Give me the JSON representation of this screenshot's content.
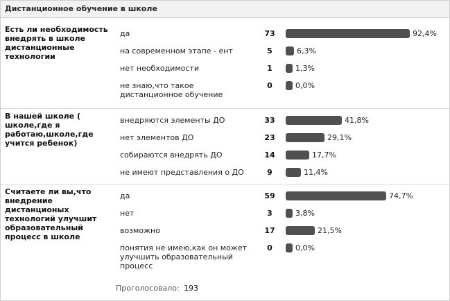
{
  "poll": {
    "title": "Дистанционное обучение в школе",
    "total_label": "Проголосовало:",
    "total_votes": "193",
    "bar_color": "#505050",
    "questions": [
      {
        "text": "Есть ли необходимость внедрять в школе дистанционные технологии",
        "options": [
          {
            "label": "да",
            "count": "73",
            "percent": "92,4%",
            "fraction": 0.924
          },
          {
            "label": "на современном этапе - ент",
            "count": "5",
            "percent": "6,3%",
            "fraction": 0.063
          },
          {
            "label": "нет необходимости",
            "count": "1",
            "percent": "1,3%",
            "fraction": 0.013
          },
          {
            "label": "не знаю,что такое дистанционное обучение",
            "count": "0",
            "percent": "0,0%",
            "fraction": 0.0
          }
        ]
      },
      {
        "text": "В нашей школе ( школе,где я работаю,школе,где учится ребенок)",
        "options": [
          {
            "label": "внедряются элементы ДО",
            "count": "33",
            "percent": "41,8%",
            "fraction": 0.418
          },
          {
            "label": "нет элементов ДО",
            "count": "23",
            "percent": "29,1%",
            "fraction": 0.291
          },
          {
            "label": "собираются внедрять ДО",
            "count": "14",
            "percent": "17,7%",
            "fraction": 0.177
          },
          {
            "label": "не имеют представления о ДО",
            "count": "9",
            "percent": "11,4%",
            "fraction": 0.114
          }
        ]
      },
      {
        "text": "Считаете ли вы,что внедрение дистанционых технологий улучшит образовательный процесс в школе",
        "options": [
          {
            "label": "да",
            "count": "59",
            "percent": "74,7%",
            "fraction": 0.747
          },
          {
            "label": "нет",
            "count": "3",
            "percent": "3,8%",
            "fraction": 0.038
          },
          {
            "label": "возможно",
            "count": "17",
            "percent": "21,5%",
            "fraction": 0.215
          },
          {
            "label": "понятия не имею,как он может улучшить образовательный процесс",
            "count": "0",
            "percent": "0,0%",
            "fraction": 0.0
          }
        ]
      }
    ]
  }
}
